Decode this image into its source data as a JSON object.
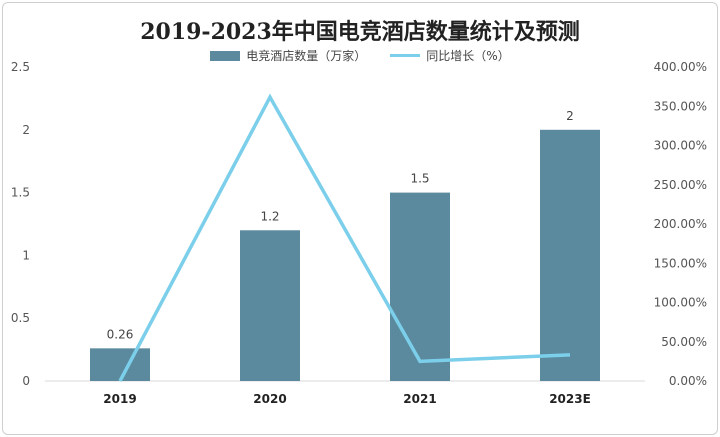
{
  "chart_data": {
    "type": "bar",
    "title": "2019-2023年中国电竞酒店数量统计及预测",
    "categories": [
      "2019",
      "2020",
      "2021",
      "2023E"
    ],
    "series": [
      {
        "name": "电竞酒店数量（万家）",
        "type": "bar",
        "axis": "left",
        "values": [
          0.26,
          1.2,
          1.5,
          2
        ],
        "labels": [
          "0.26",
          "1.2",
          "1.5",
          "2"
        ],
        "color": "#5b8a9e"
      },
      {
        "name": "同比增长（%）",
        "type": "line",
        "axis": "right",
        "values": [
          0,
          361.54,
          25,
          33.33
        ],
        "color": "#7ccfea"
      }
    ],
    "y_left": {
      "ylim": [
        0,
        2.5
      ],
      "ticks": [
        "0",
        "0.5",
        "1",
        "1.5",
        "2",
        "2.5"
      ]
    },
    "y_right": {
      "ylim": [
        0,
        400
      ],
      "ticks": [
        "0.00%",
        "50.00%",
        "100.00%",
        "150.00%",
        "200.00%",
        "250.00%",
        "300.00%",
        "350.00%",
        "400.00%"
      ]
    },
    "legend_position": "top-center",
    "grid": false
  }
}
